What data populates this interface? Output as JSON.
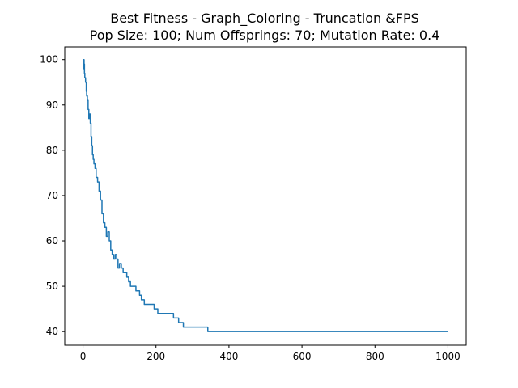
{
  "chart_data": {
    "type": "line",
    "title": "Best Fitness - Graph_Coloring - Truncation &FPS",
    "subtitle": "Pop Size: 100; Num Offsprings: 70; Mutation Rate: 0.4",
    "xlabel": "",
    "ylabel": "",
    "xlim": [
      -50,
      1050
    ],
    "ylim": [
      37.0,
      102.8
    ],
    "x_ticks": [
      0,
      200,
      400,
      600,
      800,
      1000
    ],
    "y_ticks": [
      40,
      50,
      60,
      70,
      80,
      90,
      100
    ],
    "grid": false,
    "legend": "none",
    "series": [
      {
        "color": "#1f77b4",
        "x": [
          0,
          1,
          2,
          3,
          4,
          5,
          6,
          7,
          8,
          9,
          10,
          12,
          14,
          16,
          18,
          20,
          22,
          24,
          26,
          28,
          30,
          33,
          36,
          40,
          44,
          48,
          52,
          56,
          60,
          64,
          68,
          72,
          76,
          80,
          84,
          88,
          92,
          96,
          100,
          105,
          110,
          115,
          120,
          125,
          130,
          135,
          140,
          145,
          150,
          155,
          160,
          168,
          176,
          185,
          195,
          205,
          215,
          225,
          235,
          248,
          262,
          275,
          290,
          305,
          320,
          338,
          342,
          400,
          500,
          600,
          700,
          800,
          900,
          1000
        ],
        "y": [
          100,
          98,
          100,
          99,
          97,
          96,
          96,
          95,
          95,
          93,
          92,
          91,
          89,
          87,
          88,
          86,
          83,
          81,
          79,
          78,
          77,
          76,
          74,
          73,
          71,
          69,
          66,
          64,
          63,
          61,
          62,
          60,
          58,
          57,
          56,
          57,
          56,
          54,
          55,
          54,
          53,
          53,
          52,
          51,
          50,
          50,
          50,
          49,
          49,
          48,
          47,
          46,
          46,
          46,
          45,
          44,
          44,
          44,
          44,
          43,
          42,
          41,
          41,
          41,
          41,
          41,
          40,
          40,
          40,
          40,
          40,
          40,
          40,
          40
        ]
      }
    ]
  }
}
